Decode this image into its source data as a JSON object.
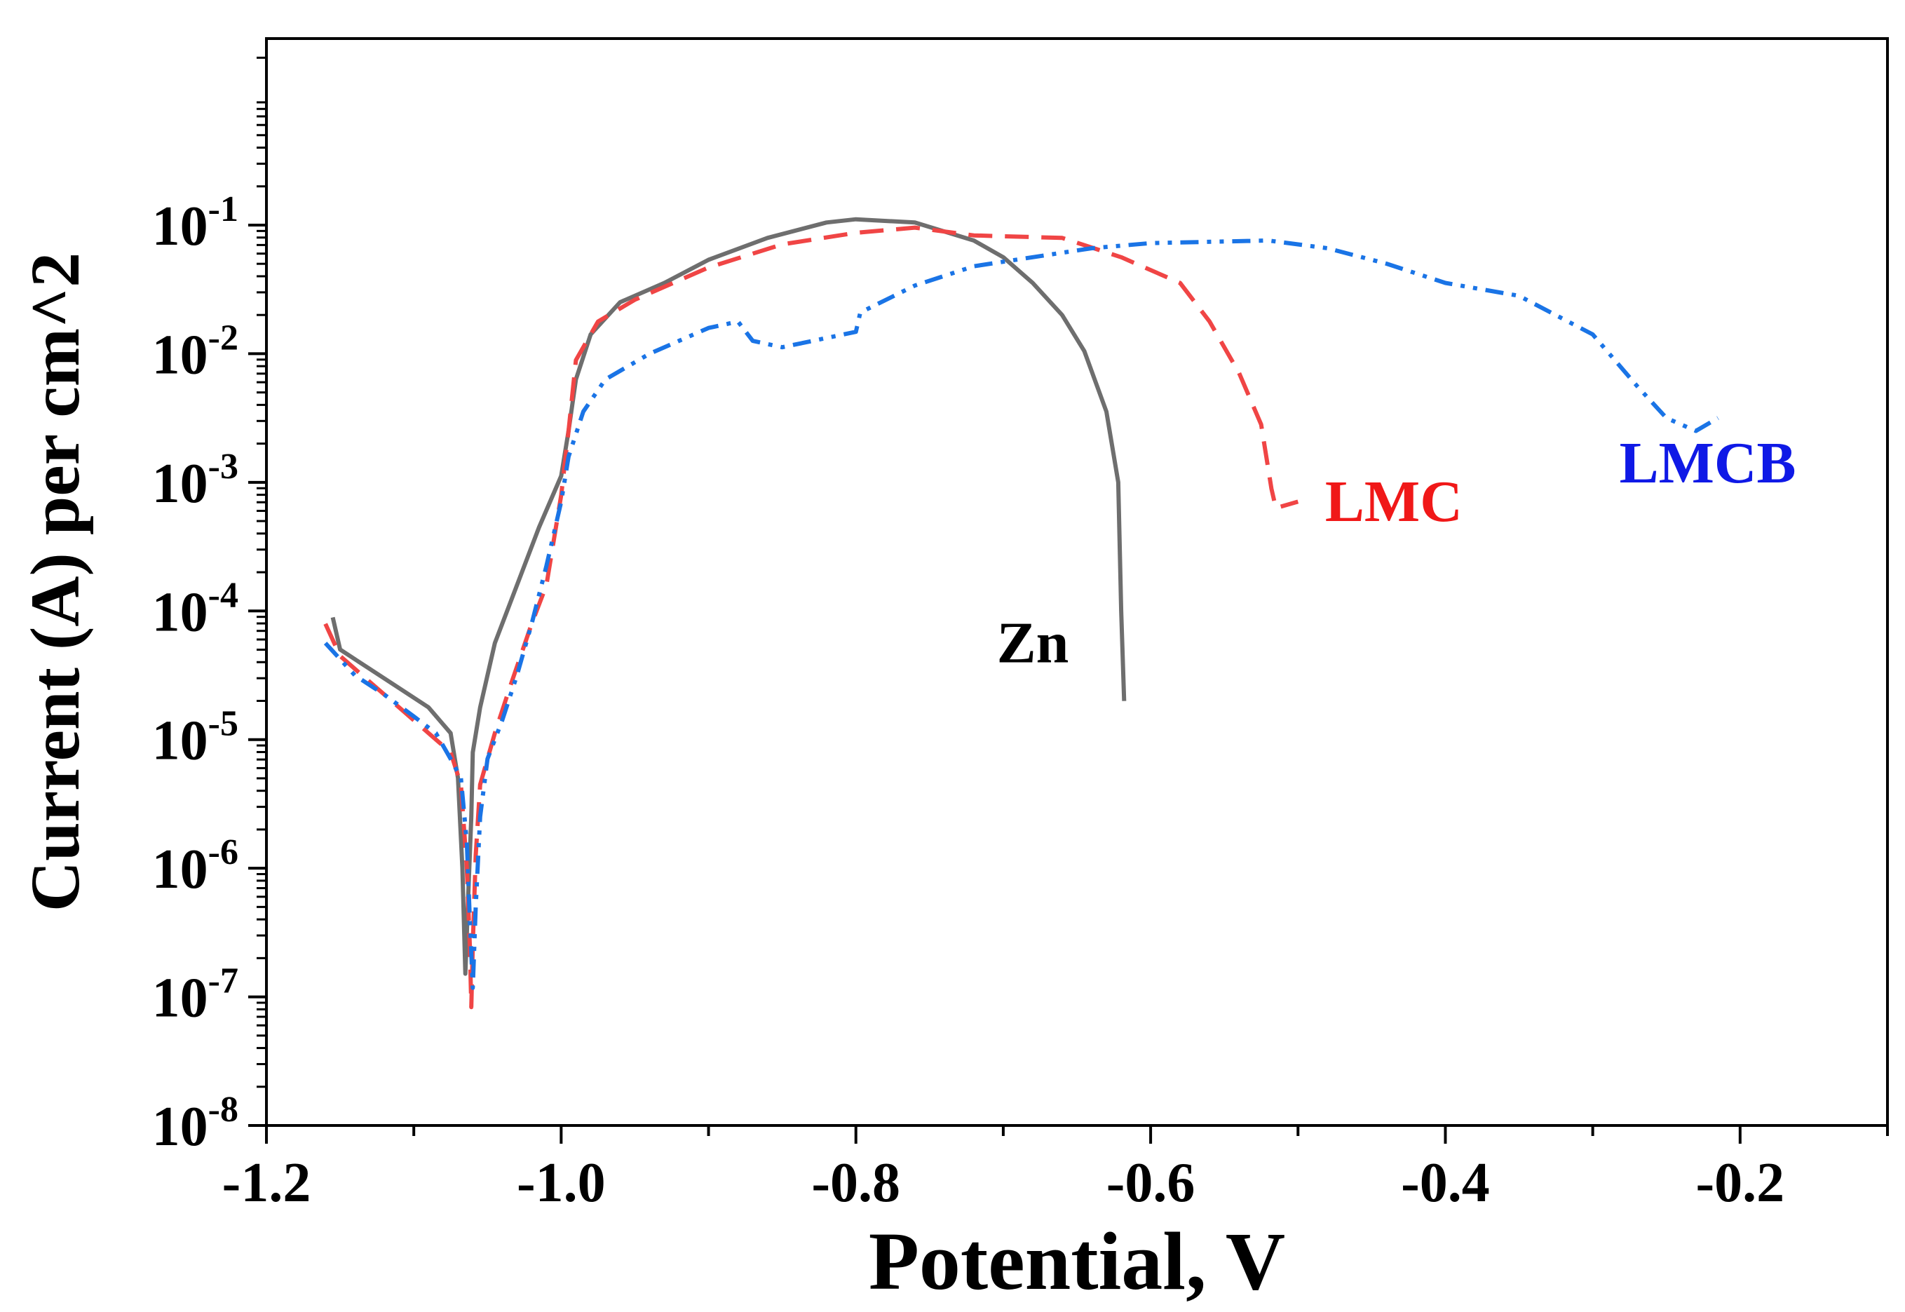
{
  "chart_data": {
    "type": "line",
    "title": "",
    "xlabel": "Potential, V",
    "ylabel": "Current (A) per cm^2",
    "xlim": [
      -1.2,
      -0.1
    ],
    "ylim_log10": [
      -8,
      0.45
    ],
    "yscale": "log",
    "x_ticks": [
      {
        "value": -1.2,
        "label": "-1.2"
      },
      {
        "value": -1.0,
        "label": "-1.0"
      },
      {
        "value": -0.8,
        "label": "-0.8"
      },
      {
        "value": -0.6,
        "label": "-0.6"
      },
      {
        "value": -0.4,
        "label": "-0.4"
      },
      {
        "value": -0.2,
        "label": "-0.2"
      }
    ],
    "x_minor_ticks": [
      -1.1,
      -0.9,
      -0.7,
      -0.5,
      -0.3,
      -0.1
    ],
    "y_ticks": [
      {
        "exp": -8,
        "base": "10",
        "sup": "-8"
      },
      {
        "exp": -7,
        "base": "10",
        "sup": "-7"
      },
      {
        "exp": -6,
        "base": "10",
        "sup": "-6"
      },
      {
        "exp": -5,
        "base": "10",
        "sup": "-5"
      },
      {
        "exp": -4,
        "base": "10",
        "sup": "-4"
      },
      {
        "exp": -3,
        "base": "10",
        "sup": "-3"
      },
      {
        "exp": -2,
        "base": "10",
        "sup": "-2"
      },
      {
        "exp": -1,
        "base": "10",
        "sup": "-1"
      }
    ],
    "grid": false,
    "legend": "inline labels",
    "series": [
      {
        "name": "Zn",
        "color": "#6e6e6e",
        "dash": "solid",
        "points": [
          [
            -1.155,
            -4.05
          ],
          [
            -1.15,
            -4.3
          ],
          [
            -1.13,
            -4.45
          ],
          [
            -1.11,
            -4.6
          ],
          [
            -1.09,
            -4.75
          ],
          [
            -1.075,
            -4.95
          ],
          [
            -1.07,
            -5.3
          ],
          [
            -1.067,
            -6.0
          ],
          [
            -1.065,
            -6.82
          ],
          [
            -1.063,
            -6.2
          ],
          [
            -1.061,
            -5.6
          ],
          [
            -1.06,
            -5.1
          ],
          [
            -1.055,
            -4.75
          ],
          [
            -1.045,
            -4.25
          ],
          [
            -1.03,
            -3.8
          ],
          [
            -1.015,
            -3.35
          ],
          [
            -1.0,
            -2.95
          ],
          [
            -0.995,
            -2.6
          ],
          [
            -0.99,
            -2.2
          ],
          [
            -0.98,
            -1.85
          ],
          [
            -0.96,
            -1.6
          ],
          [
            -0.93,
            -1.45
          ],
          [
            -0.9,
            -1.27
          ],
          [
            -0.86,
            -1.1
          ],
          [
            -0.82,
            -0.98
          ],
          [
            -0.8,
            -0.955
          ],
          [
            -0.76,
            -0.98
          ],
          [
            -0.72,
            -1.12
          ],
          [
            -0.7,
            -1.25
          ],
          [
            -0.68,
            -1.45
          ],
          [
            -0.66,
            -1.7
          ],
          [
            -0.645,
            -1.98
          ],
          [
            -0.63,
            -2.45
          ],
          [
            -0.622,
            -3.0
          ],
          [
            -0.62,
            -4.0
          ],
          [
            -0.618,
            -4.7
          ]
        ]
      },
      {
        "name": "LMC",
        "color": "#f04545",
        "dash": "dashed",
        "points": [
          [
            -1.16,
            -4.1
          ],
          [
            -1.15,
            -4.35
          ],
          [
            -1.13,
            -4.55
          ],
          [
            -1.11,
            -4.75
          ],
          [
            -1.09,
            -4.95
          ],
          [
            -1.075,
            -5.1
          ],
          [
            -1.068,
            -5.35
          ],
          [
            -1.064,
            -6.0
          ],
          [
            -1.062,
            -6.6
          ],
          [
            -1.061,
            -7.08
          ],
          [
            -1.06,
            -6.6
          ],
          [
            -1.058,
            -5.9
          ],
          [
            -1.055,
            -5.35
          ],
          [
            -1.045,
            -4.95
          ],
          [
            -1.035,
            -4.6
          ],
          [
            -1.02,
            -4.1
          ],
          [
            -1.01,
            -3.8
          ],
          [
            -1.0,
            -3.1
          ],
          [
            -0.995,
            -2.6
          ],
          [
            -0.99,
            -2.05
          ],
          [
            -0.975,
            -1.75
          ],
          [
            -0.95,
            -1.58
          ],
          [
            -0.9,
            -1.33
          ],
          [
            -0.85,
            -1.15
          ],
          [
            -0.8,
            -1.06
          ],
          [
            -0.76,
            -1.02
          ],
          [
            -0.72,
            -1.08
          ],
          [
            -0.66,
            -1.1
          ],
          [
            -0.62,
            -1.25
          ],
          [
            -0.58,
            -1.45
          ],
          [
            -0.56,
            -1.75
          ],
          [
            -0.54,
            -2.15
          ],
          [
            -0.525,
            -2.55
          ],
          [
            -0.518,
            -3.05
          ],
          [
            -0.515,
            -3.2
          ],
          [
            -0.5,
            -3.15
          ]
        ]
      },
      {
        "name": "LMCB",
        "color": "#1a74e6",
        "dash": "dash-dot-dot",
        "points": [
          [
            -1.16,
            -4.25
          ],
          [
            -1.14,
            -4.5
          ],
          [
            -1.12,
            -4.65
          ],
          [
            -1.1,
            -4.82
          ],
          [
            -1.085,
            -4.95
          ],
          [
            -1.075,
            -5.15
          ],
          [
            -1.068,
            -5.3
          ],
          [
            -1.064,
            -5.8
          ],
          [
            -1.062,
            -6.4
          ],
          [
            -1.06,
            -6.93
          ],
          [
            -1.058,
            -6.3
          ],
          [
            -1.055,
            -5.6
          ],
          [
            -1.05,
            -5.15
          ],
          [
            -1.04,
            -4.85
          ],
          [
            -1.03,
            -4.5
          ],
          [
            -1.02,
            -4.1
          ],
          [
            -1.01,
            -3.65
          ],
          [
            -1.0,
            -3.15
          ],
          [
            -0.995,
            -2.8
          ],
          [
            -0.985,
            -2.45
          ],
          [
            -0.97,
            -2.2
          ],
          [
            -0.94,
            -2.0
          ],
          [
            -0.9,
            -1.8
          ],
          [
            -0.88,
            -1.75
          ],
          [
            -0.87,
            -1.9
          ],
          [
            -0.85,
            -1.95
          ],
          [
            -0.8,
            -1.83
          ],
          [
            -0.797,
            -1.68
          ],
          [
            -0.76,
            -1.47
          ],
          [
            -0.72,
            -1.32
          ],
          [
            -0.68,
            -1.25
          ],
          [
            -0.64,
            -1.18
          ],
          [
            -0.6,
            -1.14
          ],
          [
            -0.52,
            -1.12
          ],
          [
            -0.48,
            -1.18
          ],
          [
            -0.44,
            -1.3
          ],
          [
            -0.4,
            -1.45
          ],
          [
            -0.35,
            -1.55
          ],
          [
            -0.3,
            -1.85
          ],
          [
            -0.27,
            -2.25
          ],
          [
            -0.25,
            -2.5
          ],
          [
            -0.23,
            -2.6
          ],
          [
            -0.215,
            -2.5
          ]
        ]
      }
    ],
    "annotations": [
      {
        "text": "Zn",
        "x": -0.68,
        "y_log": -4.4,
        "color": "#000000"
      },
      {
        "text": "LMC",
        "x": -0.435,
        "y_log": -3.3,
        "color": "#f01818"
      },
      {
        "text": "LMCB",
        "x": -0.222,
        "y_log": -3.0,
        "color": "#0f19e6"
      }
    ]
  }
}
